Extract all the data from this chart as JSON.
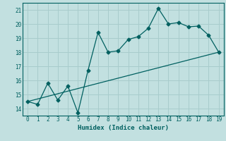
{
  "xlabel": "Humidex (Indice chaleur)",
  "bg_color": "#c2e0e0",
  "grid_color": "#a8cccc",
  "line_color": "#006060",
  "xlim": [
    -0.5,
    19.5
  ],
  "ylim": [
    13.5,
    21.5
  ],
  "xticks": [
    0,
    1,
    2,
    3,
    4,
    5,
    6,
    7,
    8,
    9,
    10,
    11,
    12,
    13,
    14,
    15,
    16,
    17,
    18,
    19
  ],
  "yticks": [
    14,
    15,
    16,
    17,
    18,
    19,
    20,
    21
  ],
  "zigzag_x": [
    0,
    1,
    2,
    3,
    4,
    5,
    6,
    7,
    8,
    9,
    10,
    11,
    12,
    13,
    14,
    15,
    16,
    17,
    18,
    19
  ],
  "zigzag_y": [
    14.5,
    14.3,
    15.8,
    14.6,
    15.6,
    13.7,
    16.7,
    19.4,
    18.0,
    18.1,
    18.9,
    19.1,
    19.7,
    21.1,
    20.0,
    20.1,
    19.8,
    19.85,
    19.2,
    18.0
  ],
  "trend_x": [
    0,
    19
  ],
  "trend_y": [
    14.5,
    18.0
  ]
}
